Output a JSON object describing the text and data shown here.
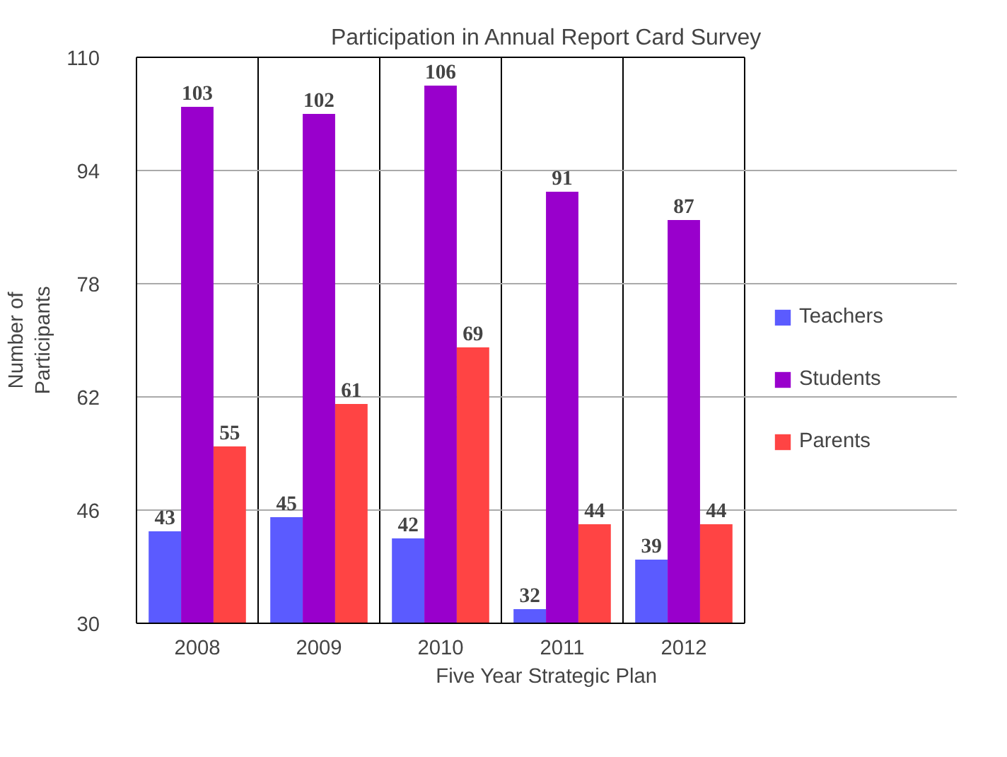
{
  "chart_data": {
    "type": "bar",
    "title": "Participation in Annual Report Card Survey",
    "xlabel": "Five Year Strategic Plan",
    "ylabel": "Number of\nParticipants",
    "categories": [
      "2008",
      "2009",
      "2010",
      "2011",
      "2012"
    ],
    "series": [
      {
        "name": "Teachers",
        "color": "#5b5bff",
        "values": [
          43,
          45,
          42,
          32,
          39
        ]
      },
      {
        "name": "Students",
        "color": "#9900cc",
        "values": [
          103,
          102,
          106,
          91,
          87
        ]
      },
      {
        "name": "Parents",
        "color": "#ff4444",
        "values": [
          55,
          61,
          69,
          44,
          44
        ]
      }
    ],
    "ylim": [
      30,
      110
    ],
    "yticks": [
      30,
      46,
      62,
      78,
      94,
      110
    ],
    "grid": true,
    "legend": "right",
    "data_labels": true
  }
}
